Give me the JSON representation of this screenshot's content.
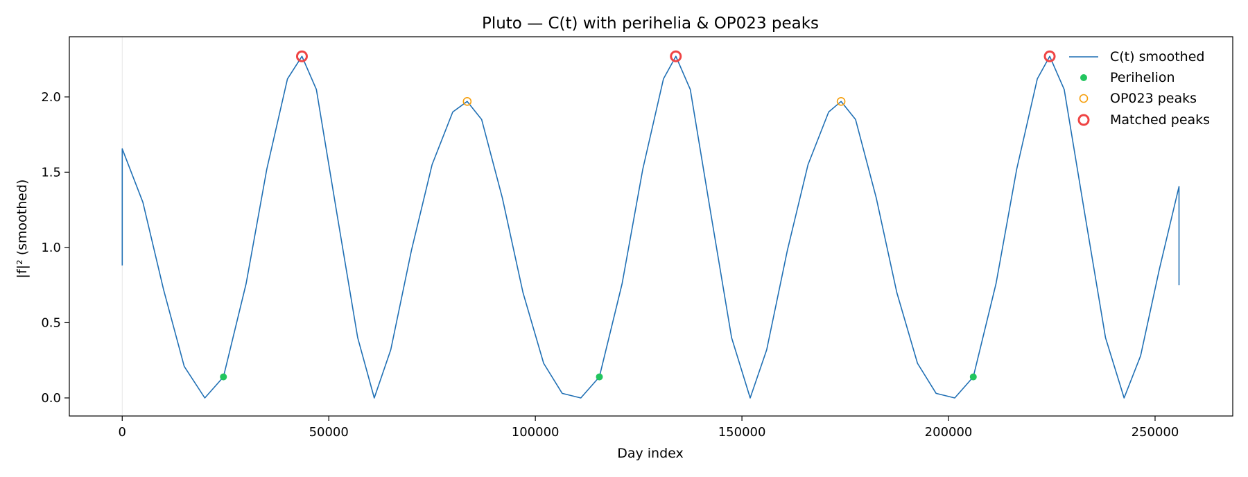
{
  "chart_data": {
    "type": "line",
    "title": "Pluto — C(t) with perihelia & OP023 peaks",
    "xlabel": "Day index",
    "ylabel": "|f|² (smoothed)",
    "xlim": [
      -12800,
      268800
    ],
    "ylim": [
      -0.12,
      2.4
    ],
    "xticks": [
      0,
      50000,
      100000,
      150000,
      200000,
      250000
    ],
    "yticks": [
      0.0,
      0.5,
      1.0,
      1.5,
      2.0
    ],
    "xtick_labels": [
      "0",
      "50000",
      "100000",
      "150000",
      "200000",
      "250000"
    ],
    "ytick_labels": [
      "0.0",
      "0.5",
      "1.0",
      "1.5",
      "2.0"
    ],
    "grid": false,
    "legend_position": "top-right",
    "series": [
      {
        "name": "C(t) smoothed",
        "kind": "line",
        "color": "#1f6fb4",
        "points": [
          [
            0,
            0.88
          ],
          [
            0,
            1.655
          ],
          [
            5000,
            1.3
          ],
          [
            10000,
            0.72
          ],
          [
            15000,
            0.21
          ],
          [
            20000,
            0.0
          ],
          [
            24500,
            0.14
          ],
          [
            30000,
            0.76
          ],
          [
            35000,
            1.52
          ],
          [
            40000,
            2.12
          ],
          [
            43500,
            2.27
          ],
          [
            47000,
            2.05
          ],
          [
            52000,
            1.22
          ],
          [
            57000,
            0.4
          ],
          [
            61000,
            0.0
          ],
          [
            65000,
            0.32
          ],
          [
            70000,
            0.98
          ],
          [
            75000,
            1.55
          ],
          [
            80000,
            1.9
          ],
          [
            83500,
            1.97
          ],
          [
            87000,
            1.85
          ],
          [
            92000,
            1.33
          ],
          [
            97000,
            0.7
          ],
          [
            102000,
            0.23
          ],
          [
            106500,
            0.03
          ],
          [
            111000,
            0.0
          ],
          [
            115500,
            0.14
          ],
          [
            121000,
            0.76
          ],
          [
            126000,
            1.52
          ],
          [
            131000,
            2.12
          ],
          [
            134000,
            2.27
          ],
          [
            137500,
            2.05
          ],
          [
            142500,
            1.22
          ],
          [
            147500,
            0.4
          ],
          [
            152000,
            0.0
          ],
          [
            156000,
            0.32
          ],
          [
            161000,
            0.98
          ],
          [
            166000,
            1.55
          ],
          [
            171000,
            1.9
          ],
          [
            174000,
            1.97
          ],
          [
            177500,
            1.85
          ],
          [
            182500,
            1.33
          ],
          [
            187500,
            0.7
          ],
          [
            192500,
            0.23
          ],
          [
            197000,
            0.03
          ],
          [
            201500,
            0.0
          ],
          [
            206000,
            0.14
          ],
          [
            211500,
            0.76
          ],
          [
            216500,
            1.52
          ],
          [
            221500,
            2.12
          ],
          [
            224500,
            2.27
          ],
          [
            228000,
            2.05
          ],
          [
            233000,
            1.22
          ],
          [
            238000,
            0.4
          ],
          [
            242500,
            0.0
          ],
          [
            246500,
            0.28
          ],
          [
            251000,
            0.85
          ],
          [
            255800,
            1.405
          ],
          [
            255800,
            0.75
          ]
        ]
      },
      {
        "name": "Perihelion",
        "kind": "scatter",
        "color": "#22c55e",
        "x": [
          24500,
          115500,
          206000
        ],
        "y": [
          0.14,
          0.14,
          0.14
        ]
      },
      {
        "name": "OP023 peaks",
        "kind": "scatter",
        "color": "#f59e0b",
        "marker": "hollow-circle",
        "x": [
          83500,
          174000
        ],
        "y": [
          1.97,
          1.97
        ]
      },
      {
        "name": "Matched peaks",
        "kind": "scatter",
        "color": "#ef4444",
        "marker": "hollow-circle",
        "x": [
          43500,
          134000,
          224500
        ],
        "y": [
          2.27,
          2.27,
          2.27
        ]
      }
    ],
    "reference_line": {
      "x": 0,
      "color": "#e6e6e6"
    }
  }
}
